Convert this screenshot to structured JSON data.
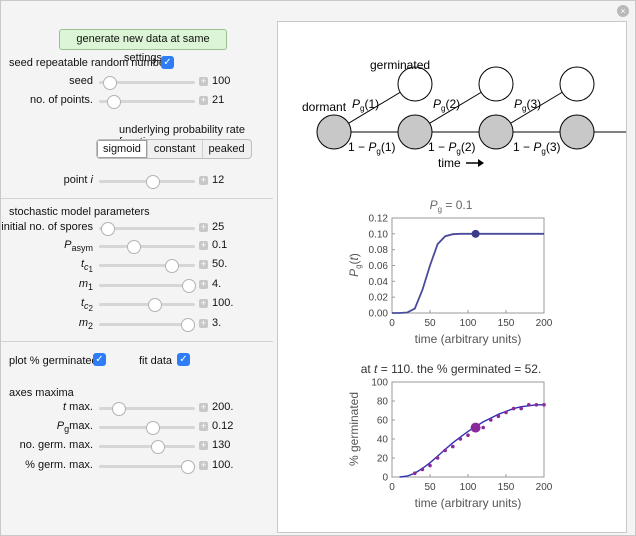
{
  "window": {
    "close_glyph": "×"
  },
  "controls": {
    "generate_label": "generate new data at same settings",
    "seed_repeatable": {
      "label": "seed repeatable random numbers",
      "checked": true
    },
    "seed": {
      "label": "seed",
      "value": "100",
      "fraction": 0.1
    },
    "points": {
      "label": "no. of points.",
      "value": "21",
      "fraction": 0.15
    },
    "rate_function": {
      "heading": "underlying probability rate function",
      "options": [
        "sigmoid",
        "constant",
        "peaked"
      ],
      "selected": "sigmoid"
    },
    "point_i": {
      "label_text": "point ",
      "label_var": "i",
      "value": "12",
      "fraction": 0.55
    },
    "stochastic_heading": "stochastic model parameters",
    "spores": {
      "label": "initial no. of spores",
      "value": "25",
      "fraction": 0.08
    },
    "pasym": {
      "sym": "P",
      "sub": "asym",
      "value": "0.1",
      "fraction": 0.35
    },
    "tc1": {
      "sym": "t",
      "sub": "c",
      "subsub": "1",
      "value": "50.",
      "fraction": 0.75
    },
    "m1": {
      "sym": "m",
      "sub": "1",
      "value": "4.",
      "fraction": 0.93
    },
    "tc2": {
      "sym": "t",
      "sub": "c",
      "subsub": "2",
      "value": "100.",
      "fraction": 0.57
    },
    "m2": {
      "sym": "m",
      "sub": "2",
      "value": "3.",
      "fraction": 0.92
    },
    "plot_germinated": {
      "label": "plot % germinated",
      "checked": true
    },
    "fit_data": {
      "label": "fit data",
      "checked": true
    },
    "axes_heading": "axes maxima",
    "tmax": {
      "label_var": "t",
      "label_text": " max.",
      "value": "200.",
      "fraction": 0.2
    },
    "pgmax": {
      "sym": "P",
      "sub": "g",
      "label_text": "max.",
      "value": "0.12",
      "fraction": 0.55
    },
    "germmax": {
      "label": "no. germ. max.",
      "value": "130",
      "fraction": 0.6
    },
    "pctmax": {
      "label": "% germ. max.",
      "value": "100.",
      "fraction": 0.92
    }
  },
  "diagram": {
    "germinated_label": "germinated",
    "dormant_label": "dormant",
    "p_label": "P",
    "p_sub": "g",
    "up_args": [
      "(1)",
      "(2)",
      "(3)"
    ],
    "stay_prefix": "1 − ",
    "time_label": "time"
  },
  "chart_data": [
    {
      "type": "line",
      "title": "P_g = 0.1",
      "title_parts": {
        "sym": "P",
        "sub": "g",
        "rest": " = 0.1"
      },
      "xlabel": "time (arbitrary units)",
      "ylabel": "P_g(t)",
      "ylabel_parts": {
        "sym": "P",
        "sub": "g",
        "arg": "t"
      },
      "xlim": [
        0,
        200
      ],
      "ylim": [
        0,
        0.12
      ],
      "xticks": [
        0,
        50,
        100,
        150,
        200
      ],
      "yticks": [
        "0.00",
        "0.02",
        "0.04",
        "0.06",
        "0.08",
        "0.10",
        "0.12"
      ],
      "colors": {
        "line": "#4a4a9c",
        "marker": "#3b3b8c"
      },
      "series": [
        {
          "x": [
            0,
            10,
            20,
            30,
            40,
            50,
            60,
            70,
            80,
            90,
            100,
            110,
            120,
            130,
            140,
            150,
            160,
            170,
            180,
            190,
            200
          ],
          "y": [
            0.0,
            0.0,
            0.0006,
            0.0055,
            0.029,
            0.06,
            0.087,
            0.097,
            0.0995,
            0.1,
            0.1,
            0.1,
            0.1,
            0.1,
            0.1,
            0.1,
            0.1,
            0.1,
            0.1,
            0.1,
            0.1
          ]
        }
      ],
      "highlight": {
        "x": 110,
        "y": 0.1
      }
    },
    {
      "type": "scatter",
      "title": "at t = 110. the % germinated = 52.",
      "title_parts": {
        "pre": "at ",
        "var": "t",
        "post": " = 110. the % germinated = 52."
      },
      "xlabel": "time (arbitrary units)",
      "ylabel": "% germinated",
      "xlim": [
        0,
        200
      ],
      "ylim": [
        0,
        100
      ],
      "xticks": [
        0,
        50,
        100,
        150,
        200
      ],
      "yticks": [
        0,
        20,
        40,
        60,
        80,
        100
      ],
      "colors": {
        "fit": "#2f2fb5",
        "points": "#8a2a9a",
        "highlight": "#8a2a9a"
      },
      "points": {
        "x": [
          30,
          40,
          50,
          60,
          70,
          80,
          90,
          100,
          110,
          120,
          130,
          140,
          150,
          160,
          170,
          180,
          190,
          200
        ],
        "y": [
          4,
          8,
          12,
          20,
          28,
          32,
          40,
          44,
          52,
          52,
          60,
          64,
          68,
          72,
          72,
          76,
          76,
          76
        ]
      },
      "fit": {
        "x": [
          10,
          20,
          30,
          40,
          50,
          60,
          70,
          80,
          90,
          100,
          110,
          120,
          130,
          140,
          150,
          160,
          170,
          180,
          190,
          200
        ],
        "y": [
          0,
          1,
          4,
          9,
          15,
          22,
          29,
          36,
          42,
          48,
          53,
          58,
          62,
          66,
          69,
          72,
          74,
          75,
          76,
          76
        ]
      },
      "highlight": {
        "x": 110,
        "y": 52
      }
    }
  ]
}
